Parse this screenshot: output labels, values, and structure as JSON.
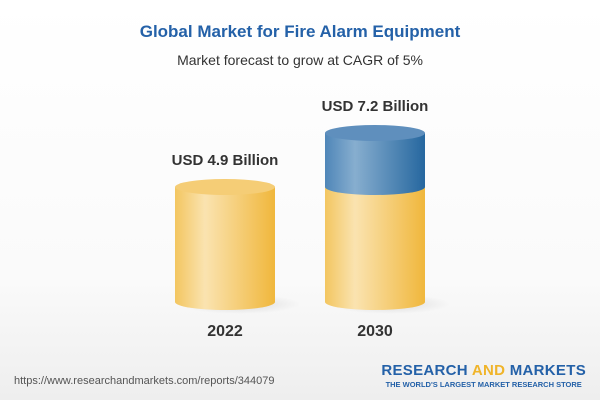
{
  "chart_data": {
    "type": "bar",
    "title": "Global Market for Fire Alarm Equipment",
    "subtitle": "Market forecast to grow at CAGR of 5%",
    "categories": [
      "2022",
      "2030"
    ],
    "values": [
      4.9,
      7.2
    ],
    "data_labels": [
      "USD 4.9 Billion",
      "USD 7.2 Billion"
    ],
    "unit": "USD Billion",
    "style": "3d-cylinder",
    "colors": {
      "base": "#f3c55a",
      "growth": "#3f7bb0"
    }
  },
  "footer": {
    "url": "https://www.researchandmarkets.com/reports/344079",
    "logo_part1": "RESEARCH ",
    "logo_part2": "AND",
    "logo_part3": " MARKETS",
    "tagline": "THE WORLD'S LARGEST MARKET RESEARCH STORE"
  }
}
